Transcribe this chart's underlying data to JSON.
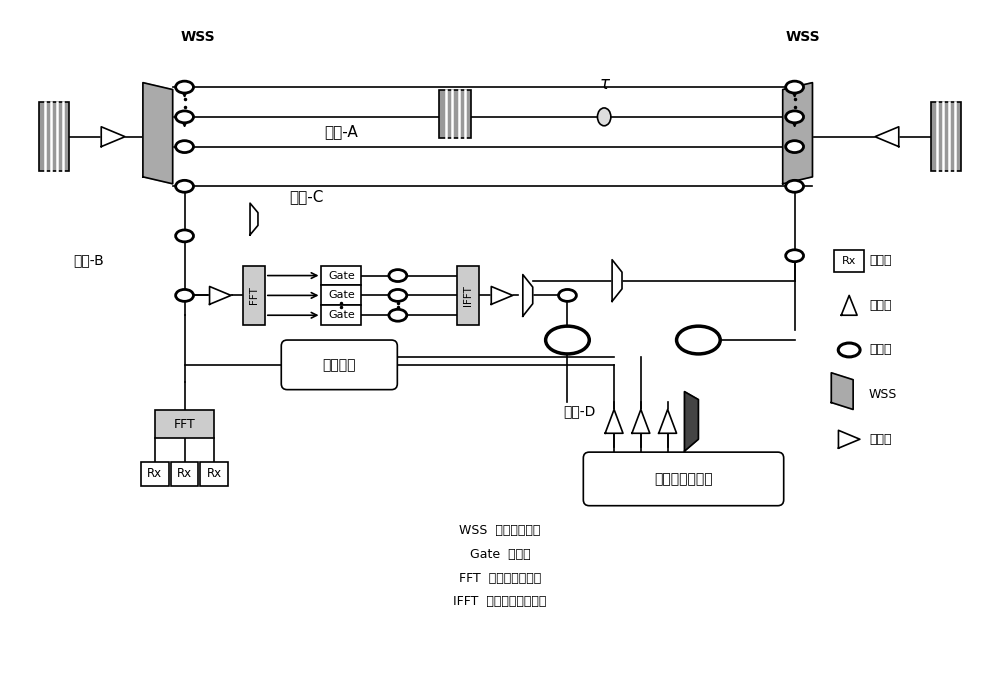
{
  "bg_color": "#ffffff",
  "legend_abbrevs": [
    "WSS  波长选择开关",
    "Gate  门电路",
    "FFT  快速傅里叶变换",
    "IFFT  快速傅里叶反变换"
  ],
  "tau_label": "τ"
}
